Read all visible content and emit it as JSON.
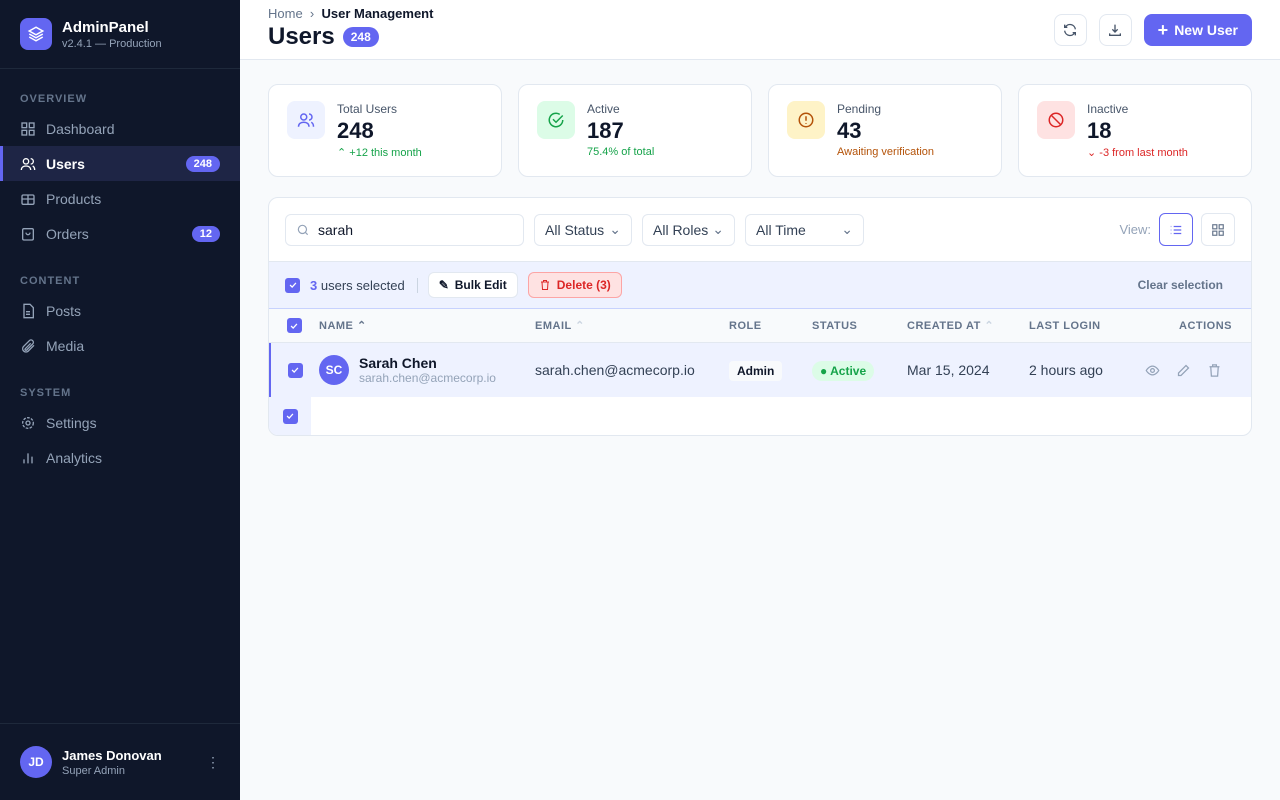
{
  "sidebar": {
    "brand": "AdminPanel",
    "version": "v2.4.1 — Production",
    "sections": [
      {
        "label": "OVERVIEW"
      },
      {
        "label": "CONTENT"
      },
      {
        "label": "SYSTEM"
      }
    ],
    "items": [
      {
        "label": "Dashboard"
      },
      {
        "label": "Users",
        "badge": "248"
      },
      {
        "label": "Products"
      },
      {
        "label": "Orders",
        "badge": "12"
      },
      {
        "label": "Posts"
      },
      {
        "label": "Media"
      },
      {
        "label": "Settings"
      },
      {
        "label": "Analytics"
      }
    ],
    "user": {
      "initials": "JD",
      "name": "James Donovan",
      "role": "Super Admin"
    }
  },
  "header": {
    "breadcrumb": [
      "Home",
      "User Management"
    ],
    "title": "Users",
    "count": "248",
    "new_user": "New User"
  },
  "stats": [
    {
      "label": "Total Users",
      "value": "248",
      "sub": "+12 this month",
      "color": "#16a34a"
    },
    {
      "label": "Active",
      "value": "187",
      "sub": "75.4% of total",
      "color": "#16a34a"
    },
    {
      "label": "Pending",
      "value": "43",
      "sub": "Awaiting verification",
      "color": "#b45309"
    },
    {
      "label": "Inactive",
      "value": "18",
      "sub": "-3 from last month",
      "color": "#dc2626"
    }
  ],
  "filters": {
    "search": "sarah",
    "status": "All Status",
    "roles": "All Roles",
    "time": "All Time",
    "view_label": "View:"
  },
  "bulk": {
    "count": "3",
    "text": "users selected",
    "edit": "Bulk Edit",
    "delete": "Delete (3)",
    "clear": "Clear selection"
  },
  "table": {
    "columns": [
      "NAME",
      "EMAIL",
      "ROLE",
      "STATUS",
      "CREATED AT",
      "LAST LOGIN",
      "ACTIONS"
    ],
    "rows": [
      {
        "initials": "SC",
        "name": "Sarah Chen",
        "sub": "sarah.chen@acmecorp.io",
        "email": "sarah.chen@acmecorp.io",
        "role": "Admin",
        "status": "Active",
        "created": "Mar 15, 2024",
        "login": "2 hours ago"
      }
    ]
  },
  "colors": {
    "accent": "#6366f1",
    "sidebar": "#0f172a"
  }
}
